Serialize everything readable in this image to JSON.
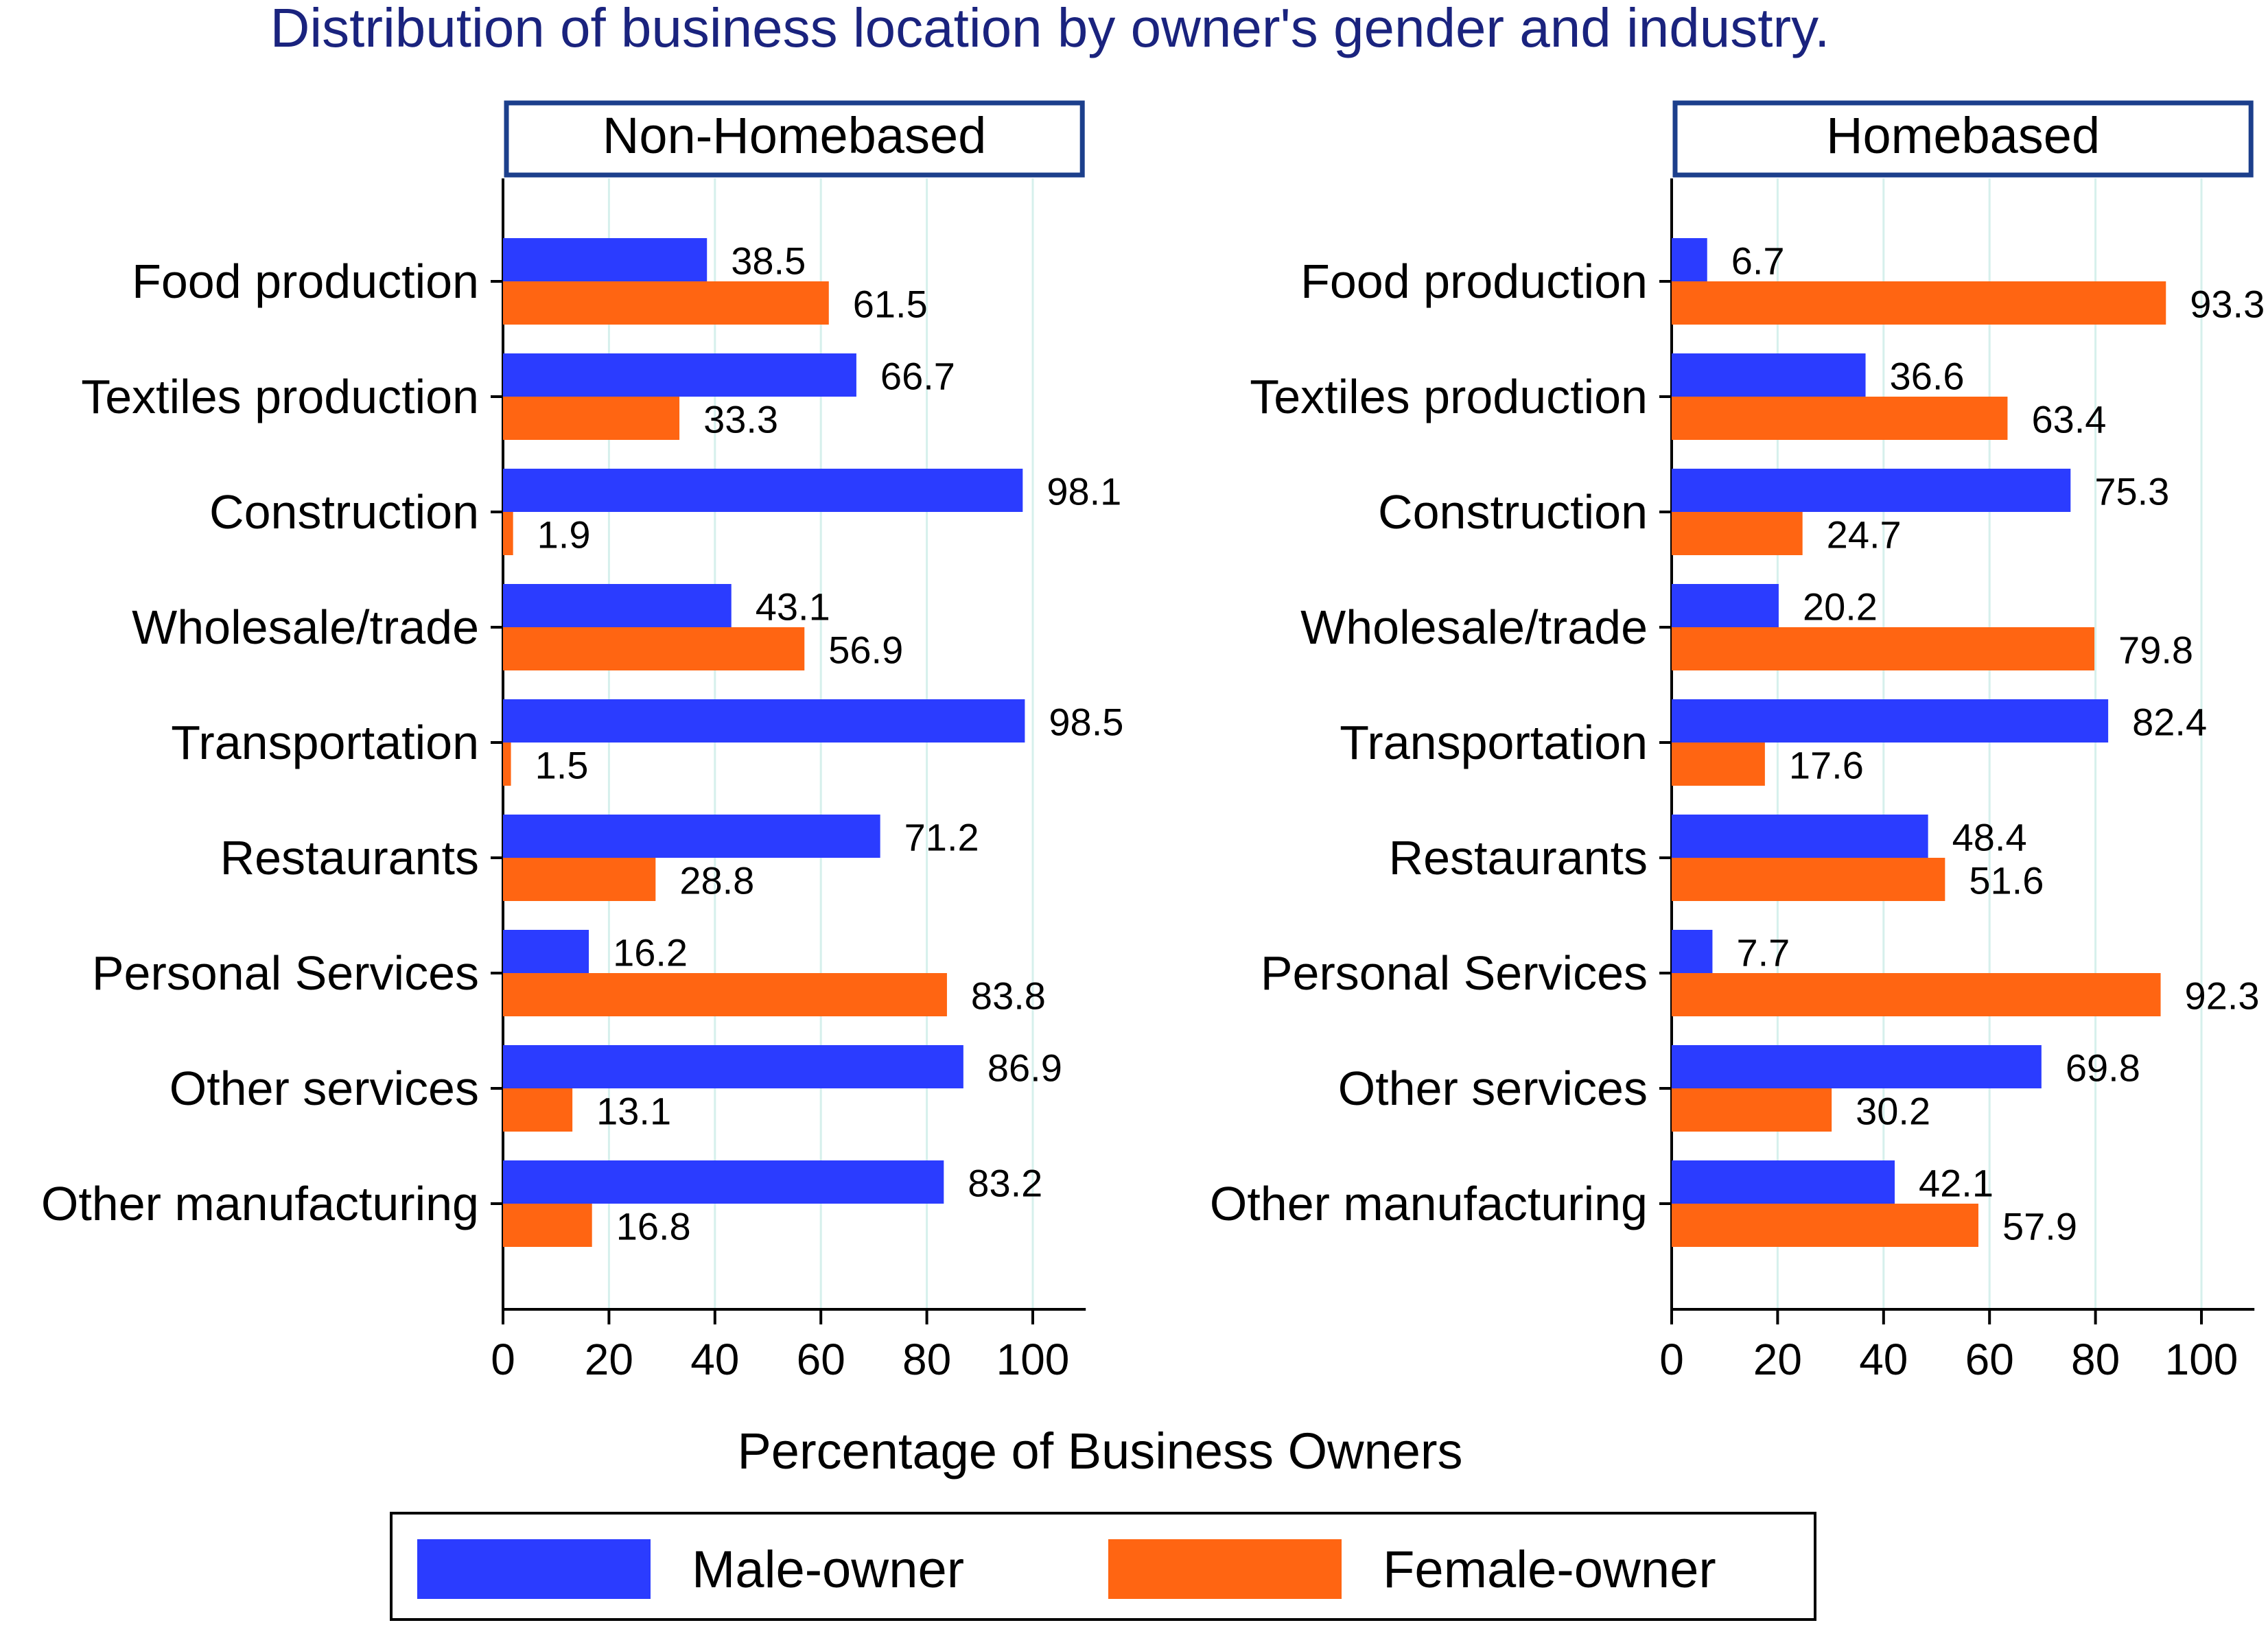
{
  "chart_data": {
    "type": "bar",
    "orientation": "horizontal",
    "title": "Distribution of business location by owner's gender and industry.",
    "xlabel": "Percentage of Business Owners",
    "xlim": [
      0,
      110
    ],
    "xticks": [
      0,
      20,
      40,
      60,
      80,
      100
    ],
    "xtick_labels": [
      "0",
      "20",
      "40",
      "60",
      "80",
      "100"
    ],
    "grid": true,
    "legend_position": "bottom",
    "categories": [
      "Food production",
      "Textiles production",
      "Construction",
      "Wholesale/trade",
      "Transportation",
      "Restaurants",
      "Personal Services",
      "Other services",
      "Other manufacturing"
    ],
    "series_colors": {
      "Male-owner": "#2b3cff",
      "Female-owner": "#ff6512"
    },
    "panels": [
      {
        "title": "Non-Homebased",
        "series": [
          {
            "name": "Male-owner",
            "values": [
              38.5,
              66.7,
              98.1,
              43.1,
              98.5,
              71.2,
              16.2,
              86.9,
              83.2
            ],
            "labels": [
              "38.5",
              "66.7",
              "98.1",
              "43.1",
              "98.5",
              "71.2",
              "16.2",
              "86.9",
              "83.2"
            ]
          },
          {
            "name": "Female-owner",
            "values": [
              61.5,
              33.3,
              1.9,
              56.9,
              1.5,
              28.8,
              83.8,
              13.1,
              16.8
            ],
            "labels": [
              "61.5",
              "33.3",
              "1.9",
              "56.9",
              "1.5",
              "28.8",
              "83.8",
              "13.1",
              "16.8"
            ]
          }
        ]
      },
      {
        "title": "Homebased",
        "series": [
          {
            "name": "Male-owner",
            "values": [
              6.7,
              36.6,
              75.3,
              20.2,
              82.4,
              48.4,
              7.7,
              69.8,
              42.1
            ],
            "labels": [
              "6.7",
              "36.6",
              "75.3",
              "20.2",
              "82.4",
              "48.4",
              "7.7",
              "69.8",
              "42.1"
            ]
          },
          {
            "name": "Female-owner",
            "values": [
              93.3,
              63.4,
              24.7,
              79.8,
              17.6,
              51.6,
              92.3,
              30.2,
              57.9
            ],
            "labels": [
              "93.3",
              "63.4",
              "24.7",
              "79.8",
              "17.6",
              "51.6",
              "92.3",
              "30.2",
              "57.9"
            ]
          }
        ]
      }
    ],
    "legend": [
      "Male-owner",
      "Female-owner"
    ]
  },
  "style": {
    "title_color": "#1a237e",
    "panel_border_color": "#1c3f8c",
    "grid_color": "#d6f0ec",
    "axis_color": "#000000"
  }
}
